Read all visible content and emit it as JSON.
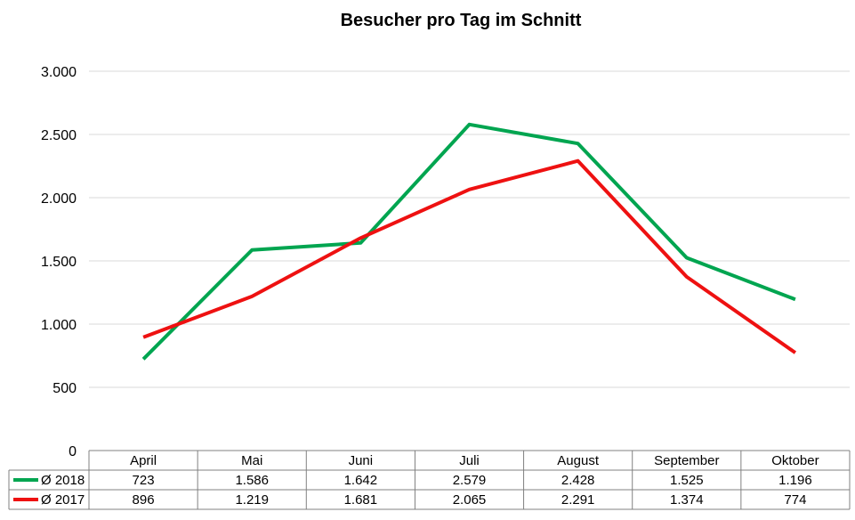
{
  "chart_data": {
    "type": "line",
    "title": "Besucher pro Tag im Schnitt",
    "xlabel": "",
    "ylabel": "",
    "categories": [
      "April",
      "Mai",
      "Juni",
      "Juli",
      "August",
      "September",
      "Oktober"
    ],
    "ylim": [
      0,
      3000
    ],
    "yticks": [
      0,
      500,
      1000,
      1500,
      2000,
      2500,
      3000
    ],
    "ytick_labels": [
      "0",
      "500",
      "1.000",
      "1.500",
      "2.000",
      "2.500",
      "3.000"
    ],
    "grid": true,
    "legend": "data-table-left",
    "series": [
      {
        "name": "Ø 2018",
        "color": "#00a550",
        "values": [
          723,
          1586,
          1642,
          2579,
          2428,
          1525,
          1196
        ],
        "labels": [
          "723",
          "1.586",
          "1.642",
          "2.579",
          "2.428",
          "1.525",
          "1.196"
        ]
      },
      {
        "name": "Ø 2017",
        "color": "#ee1111",
        "values": [
          896,
          1219,
          1681,
          2065,
          2291,
          1374,
          774
        ],
        "labels": [
          "896",
          "1.219",
          "1.681",
          "2.065",
          "2.291",
          "1.374",
          "774"
        ]
      }
    ]
  }
}
